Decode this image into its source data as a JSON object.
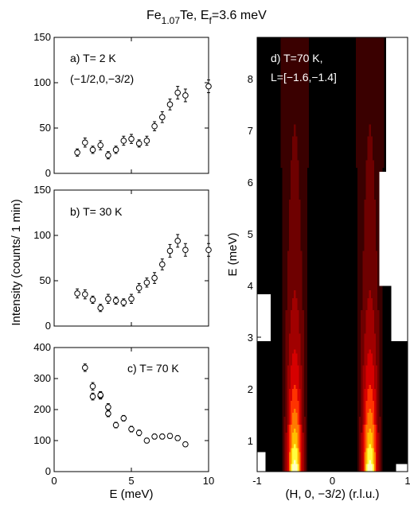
{
  "figure": {
    "title_main": "Fe",
    "title_sub1": "1.07",
    "title_mid": "Te, E",
    "title_sub2": "f",
    "title_end": "=3.6 meV"
  },
  "chart_data": [
    {
      "type": "scatter",
      "panel": "a",
      "annotation": "a) T= 2 K",
      "annotation2": "(−1/2,0,−3/2)",
      "xlim": [
        0,
        10
      ],
      "ylim": [
        0,
        150
      ],
      "yticks": [
        0,
        50,
        100,
        150
      ],
      "x": [
        1.5,
        2.0,
        2.5,
        3.0,
        3.5,
        4.0,
        4.5,
        5.0,
        5.5,
        6.0,
        6.5,
        7.0,
        7.5,
        8.0,
        8.5,
        10.0
      ],
      "y": [
        23,
        34,
        26,
        31,
        20,
        26,
        36,
        38,
        33,
        36,
        52,
        62,
        76,
        89,
        86,
        96
      ],
      "err": [
        4,
        5,
        4,
        5,
        4,
        4,
        5,
        5,
        4,
        5,
        5,
        6,
        6,
        7,
        7,
        7
      ]
    },
    {
      "type": "scatter",
      "panel": "b",
      "annotation": "b) T= 30 K",
      "xlim": [
        0,
        10
      ],
      "ylim": [
        0,
        150
      ],
      "yticks": [
        0,
        50,
        100,
        150
      ],
      "x": [
        1.5,
        2.0,
        2.5,
        3.0,
        3.5,
        4.0,
        4.5,
        5.0,
        5.5,
        6.0,
        6.5,
        7.0,
        7.5,
        8.0,
        8.5,
        10.0
      ],
      "y": [
        36,
        35,
        29,
        20,
        30,
        28,
        26,
        30,
        42,
        48,
        53,
        68,
        83,
        94,
        84,
        84
      ],
      "err": [
        5,
        5,
        4,
        4,
        5,
        4,
        4,
        5,
        5,
        5,
        6,
        6,
        7,
        7,
        7,
        7
      ]
    },
    {
      "type": "scatter",
      "panel": "c",
      "annotation": "c) T= 70 K",
      "xlim": [
        0,
        10
      ],
      "ylim": [
        0,
        400
      ],
      "yticks": [
        0,
        100,
        200,
        300,
        400
      ],
      "xticks": [
        0,
        5,
        10
      ],
      "xlabel": "E (meV)",
      "x": [
        2.0,
        2.5,
        2.5,
        3.0,
        3.0,
        3.5,
        3.5,
        4.0,
        4.5,
        5.0,
        5.5,
        6.0,
        6.5,
        7.0,
        7.5,
        8.0,
        8.5
      ],
      "y": [
        335,
        275,
        242,
        245,
        247,
        208,
        187,
        150,
        172,
        137,
        125,
        100,
        113,
        113,
        115,
        108,
        88
      ],
      "err": [
        12,
        12,
        11,
        11,
        11,
        11,
        10,
        9,
        9,
        9,
        9,
        8,
        8,
        8,
        8,
        8,
        7
      ]
    },
    {
      "type": "heatmap",
      "panel": "d",
      "annotation": "d) T=70 K,",
      "annotation2": "L=[−1.6,−1.4]",
      "xlabel": "(H, 0, −3/2) (r.l.u.)",
      "ylabel": "E (meV)",
      "xlim": [
        -1,
        1
      ],
      "ylim": [
        0.4,
        8.8
      ],
      "xticks": [
        -1,
        0,
        1
      ],
      "yticks": [
        1,
        2,
        3,
        4,
        5,
        6,
        7,
        8
      ],
      "peak_centers_H": [
        -0.5,
        0.5
      ],
      "colormap": [
        "#000000",
        "#3a0000",
        "#6e0000",
        "#a10000",
        "#d60000",
        "#ff3300",
        "#ff7a00",
        "#ffbf00",
        "#ffff40",
        "#ffffc0"
      ]
    }
  ],
  "shared_ylabel": "Intensity (counts/ 1 min)"
}
